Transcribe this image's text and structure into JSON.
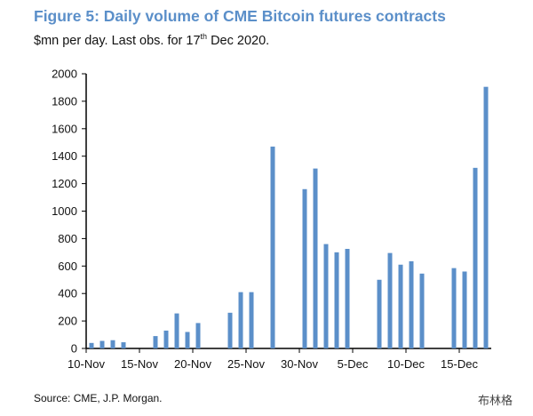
{
  "chart_data": {
    "type": "bar",
    "title": "Figure 5: Daily volume of CME Bitcoin futures contracts",
    "subtitle": {
      "text": "$mn per day. Last obs. for 17",
      "sup": "th",
      "tail": " Dec 2020."
    },
    "source": "Source: CME, J.P. Morgan.",
    "ylim": [
      0,
      2000
    ],
    "yticks": [
      0,
      200,
      400,
      600,
      800,
      1000,
      1200,
      1400,
      1600,
      1800,
      2000
    ],
    "xticks": [
      "10-Nov",
      "15-Nov",
      "20-Nov",
      "25-Nov",
      "30-Nov",
      "5-Dec",
      "10-Dec",
      "15-Dec"
    ],
    "xrange": [
      "2020-11-10",
      "2020-12-18"
    ],
    "bar_color": "#5b8fc9",
    "points": [
      {
        "date": "2020-11-10",
        "value": 40
      },
      {
        "date": "2020-11-11",
        "value": 55
      },
      {
        "date": "2020-11-12",
        "value": 60
      },
      {
        "date": "2020-11-13",
        "value": 45
      },
      {
        "date": "2020-11-16",
        "value": 90
      },
      {
        "date": "2020-11-17",
        "value": 130
      },
      {
        "date": "2020-11-18",
        "value": 255
      },
      {
        "date": "2020-11-19",
        "value": 120
      },
      {
        "date": "2020-11-20",
        "value": 185
      },
      {
        "date": "2020-11-23",
        "value": 260
      },
      {
        "date": "2020-11-24",
        "value": 410
      },
      {
        "date": "2020-11-25",
        "value": 410
      },
      {
        "date": "2020-11-27",
        "value": 1470
      },
      {
        "date": "2020-11-30",
        "value": 1160
      },
      {
        "date": "2020-12-01",
        "value": 1310
      },
      {
        "date": "2020-12-02",
        "value": 760
      },
      {
        "date": "2020-12-03",
        "value": 700
      },
      {
        "date": "2020-12-04",
        "value": 725
      },
      {
        "date": "2020-12-07",
        "value": 500
      },
      {
        "date": "2020-12-08",
        "value": 695
      },
      {
        "date": "2020-12-09",
        "value": 610
      },
      {
        "date": "2020-12-10",
        "value": 635
      },
      {
        "date": "2020-12-11",
        "value": 545
      },
      {
        "date": "2020-12-14",
        "value": 585
      },
      {
        "date": "2020-12-15",
        "value": 560
      },
      {
        "date": "2020-12-16",
        "value": 1315
      },
      {
        "date": "2020-12-17",
        "value": 1905
      }
    ]
  },
  "watermark": "布林格"
}
